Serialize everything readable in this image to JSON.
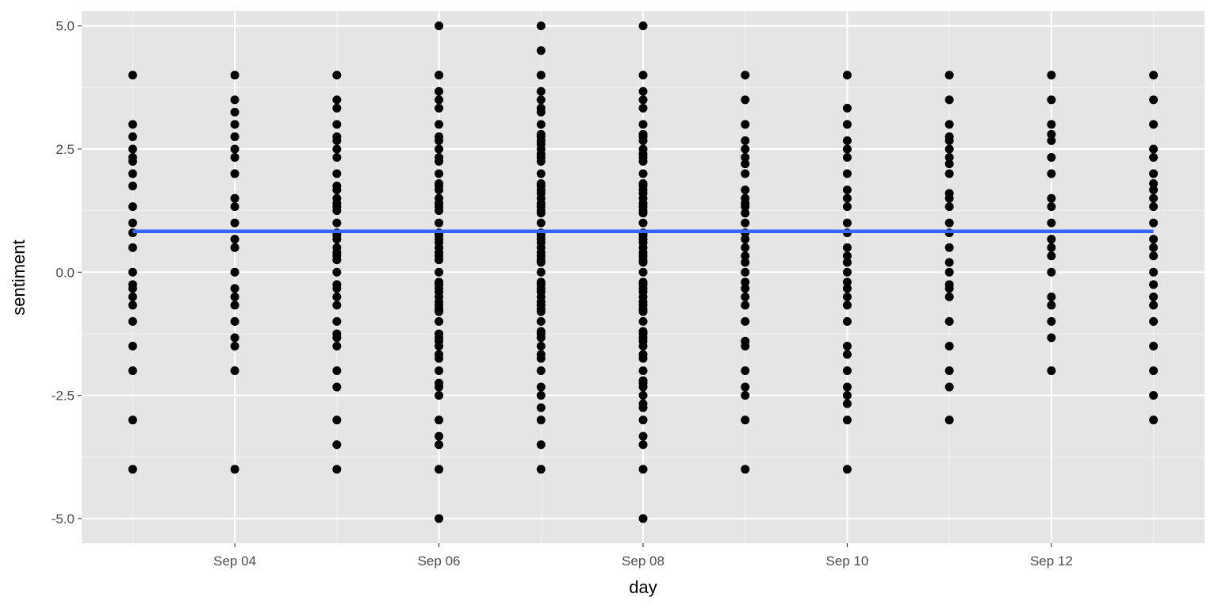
{
  "chart_data": {
    "type": "scatter",
    "title": "",
    "xlabel": "day",
    "ylabel": "sentiment",
    "xlim": [
      "2020-09-02T12:00",
      "2020-09-13T12:00"
    ],
    "ylim": [
      -5.5,
      5.3
    ],
    "x_ticks": [
      {
        "value": "2020-09-04",
        "label": "Sep 04"
      },
      {
        "value": "2020-09-06",
        "label": "Sep 06"
      },
      {
        "value": "2020-09-08",
        "label": "Sep 08"
      },
      {
        "value": "2020-09-10",
        "label": "Sep 10"
      },
      {
        "value": "2020-09-12",
        "label": "Sep 12"
      }
    ],
    "y_ticks": [
      {
        "value": -5,
        "label": "-5.0"
      },
      {
        "value": -2.5,
        "label": "-2.5"
      },
      {
        "value": 0,
        "label": "0.0"
      },
      {
        "value": 2.5,
        "label": "2.5"
      },
      {
        "value": 5,
        "label": "5.0"
      }
    ],
    "grid": true,
    "series": [
      {
        "color": "#000000",
        "points": [
          {
            "day": "2020-09-03",
            "values": [
              4,
              3,
              2.75,
              2.5,
              2.33,
              2.25,
              2,
              1.75,
              1.33,
              1,
              0.8,
              0.5,
              0,
              -0.25,
              -0.33,
              -0.5,
              -0.67,
              -1,
              -1.5,
              -2,
              -3,
              -4
            ]
          },
          {
            "day": "2020-09-04",
            "values": [
              4,
              3.5,
              3.25,
              3,
              2.75,
              2.5,
              2.33,
              2,
              1.5,
              1.33,
              1,
              0.67,
              0.5,
              0,
              -0.33,
              -0.5,
              -0.67,
              -1,
              -1.33,
              -1.5,
              -2,
              -4
            ]
          },
          {
            "day": "2020-09-05",
            "values": [
              4,
              3.5,
              3.33,
              3,
              2.75,
              2.67,
              2.5,
              2.33,
              2,
              1.75,
              1.67,
              1.5,
              1.4,
              1.33,
              1.25,
              1,
              0.8,
              0.75,
              0.67,
              0.5,
              0.4,
              0.33,
              0.25,
              0,
              -0.25,
              -0.33,
              -0.5,
              -0.67,
              -1,
              -1.25,
              -1.33,
              -1.5,
              -2,
              -2.33,
              -3,
              -3.5,
              -4
            ]
          },
          {
            "day": "2020-09-06",
            "values": [
              5,
              4,
              3.67,
              3.5,
              3.33,
              3,
              2.75,
              2.67,
              2.5,
              2.33,
              2.25,
              2,
              1.8,
              1.75,
              1.67,
              1.5,
              1.4,
              1.33,
              1.25,
              1,
              0.8,
              0.75,
              0.67,
              0.6,
              0.5,
              0.4,
              0.33,
              0.25,
              0,
              -0.2,
              -0.25,
              -0.33,
              -0.4,
              -0.5,
              -0.6,
              -0.67,
              -0.75,
              -0.8,
              -1,
              -1.25,
              -1.33,
              -1.4,
              -1.5,
              -1.67,
              -1.75,
              -2,
              -2.25,
              -2.33,
              -2.5,
              -3,
              -3.33,
              -3.5,
              -4,
              -5
            ]
          },
          {
            "day": "2020-09-07",
            "values": [
              5,
              4.5,
              4,
              3.67,
              3.5,
              3.33,
              3.25,
              3,
              2.8,
              2.75,
              2.67,
              2.6,
              2.5,
              2.4,
              2.33,
              2.25,
              2,
              1.8,
              1.75,
              1.67,
              1.6,
              1.5,
              1.4,
              1.33,
              1.25,
              1.2,
              1,
              0.8,
              0.75,
              0.67,
              0.6,
              0.5,
              0.4,
              0.33,
              0.25,
              0.2,
              0,
              -0.2,
              -0.25,
              -0.33,
              -0.4,
              -0.5,
              -0.6,
              -0.67,
              -0.75,
              -0.8,
              -1,
              -1.2,
              -1.25,
              -1.33,
              -1.5,
              -1.67,
              -1.75,
              -2,
              -2.33,
              -2.5,
              -2.75,
              -3,
              -3.5,
              -4
            ]
          },
          {
            "day": "2020-09-08",
            "values": [
              5,
              4,
              3.67,
              3.5,
              3.33,
              3,
              2.8,
              2.75,
              2.67,
              2.5,
              2.4,
              2.33,
              2.25,
              2,
              1.8,
              1.75,
              1.67,
              1.6,
              1.5,
              1.4,
              1.33,
              1.25,
              1.2,
              1,
              0.8,
              0.75,
              0.67,
              0.6,
              0.5,
              0.4,
              0.33,
              0.25,
              0.2,
              0,
              -0.2,
              -0.25,
              -0.33,
              -0.4,
              -0.5,
              -0.6,
              -0.67,
              -0.75,
              -0.8,
              -1,
              -1.2,
              -1.25,
              -1.33,
              -1.4,
              -1.5,
              -1.67,
              -1.75,
              -2,
              -2.2,
              -2.25,
              -2.33,
              -2.5,
              -2.67,
              -2.75,
              -3,
              -3.33,
              -3.5,
              -4,
              -5
            ]
          },
          {
            "day": "2020-09-09",
            "values": [
              4,
              3.5,
              3,
              2.67,
              2.5,
              2.33,
              2.2,
              2,
              1.67,
              1.5,
              1.4,
              1.33,
              1.2,
              1,
              0.8,
              0.67,
              0.5,
              0.33,
              0.2,
              0,
              -0.2,
              -0.33,
              -0.5,
              -0.67,
              -1,
              -1.4,
              -1.5,
              -2,
              -2.33,
              -2.5,
              -3,
              -4
            ]
          },
          {
            "day": "2020-09-10",
            "values": [
              4,
              3.33,
              3,
              2.67,
              2.5,
              2.33,
              2,
              1.67,
              1.5,
              1.33,
              1,
              0.8,
              0.5,
              0.33,
              0.2,
              0,
              -0.2,
              -0.33,
              -0.5,
              -0.67,
              -1,
              -1.5,
              -1.67,
              -2,
              -2.33,
              -2.5,
              -2.67,
              -3,
              -4
            ]
          },
          {
            "day": "2020-09-11",
            "values": [
              4,
              3.5,
              3,
              2.75,
              2.67,
              2.5,
              2.33,
              2.2,
              2,
              1.6,
              1.5,
              1.33,
              1,
              0.8,
              0.5,
              0.2,
              0,
              -0.25,
              -0.33,
              -0.5,
              -1,
              -1.5,
              -2,
              -2.33,
              -3
            ]
          },
          {
            "day": "2020-09-12",
            "values": [
              4,
              3.5,
              3,
              2.8,
              2.67,
              2.33,
              2,
              1.5,
              1.33,
              1,
              0.67,
              0.5,
              0.33,
              0,
              -0.5,
              -0.67,
              -1,
              -1.33,
              -2
            ]
          },
          {
            "day": "2020-09-13",
            "values": [
              4,
              3.5,
              3,
              2.5,
              2.33,
              2,
              1.8,
              1.67,
              1.5,
              1.33,
              1,
              0.67,
              0.5,
              0.33,
              0,
              -0.25,
              -0.5,
              -0.67,
              -1,
              -1.5,
              -2,
              -2.5,
              -3
            ]
          }
        ]
      },
      {
        "color": "#3366FF",
        "type": "line",
        "x": [
          "2020-09-03",
          "2020-09-13"
        ],
        "y": [
          0.83,
          0.83
        ]
      }
    ]
  }
}
